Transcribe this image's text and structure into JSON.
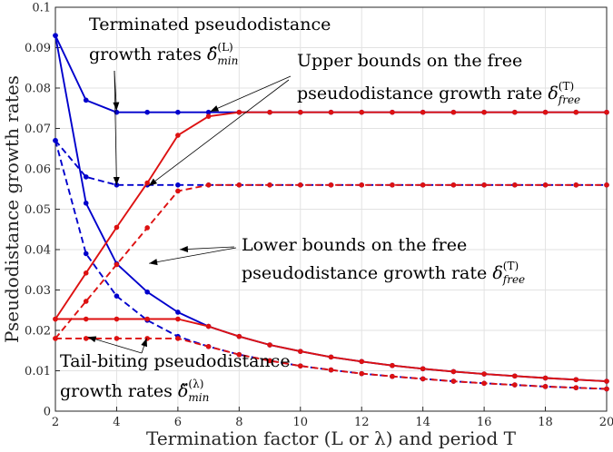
{
  "chart_data": {
    "type": "line",
    "xlabel": "Termination factor (L or λ) and period T",
    "ylabel": "Pseudodistance growth rates",
    "xlim": [
      2,
      20
    ],
    "ylim": [
      0,
      0.1
    ],
    "grid": true,
    "x_ticks": [
      "2",
      "4",
      "6",
      "8",
      "10",
      "12",
      "14",
      "16",
      "18",
      "20"
    ],
    "y_ticks": [
      "0",
      "0.01",
      "0.02",
      "0.03",
      "0.04",
      "0.05",
      "0.06",
      "0.07",
      "0.08",
      "0.09",
      "0.1"
    ],
    "x": [
      2,
      3,
      4,
      5,
      6,
      7,
      8,
      9,
      10,
      11,
      12,
      13,
      14,
      15,
      16,
      17,
      18,
      19,
      20
    ],
    "series": [
      {
        "color": "#0000cc",
        "dash": false,
        "values": [
          0.093,
          0.077,
          0.074,
          0.074,
          0.074,
          0.074,
          0.074,
          0.074,
          0.074,
          0.074,
          0.074,
          0.074,
          0.074,
          0.074,
          0.074,
          0.074,
          0.074,
          0.074,
          0.074
        ]
      },
      {
        "color": "#0000cc",
        "dash": true,
        "values": [
          0.067,
          0.058,
          0.056,
          0.056,
          0.056,
          0.056,
          0.056,
          0.056,
          0.056,
          0.056,
          0.056,
          0.056,
          0.056,
          0.056,
          0.056,
          0.056,
          0.056,
          0.056,
          0.056
        ]
      },
      {
        "color": "#0000cc",
        "dash": false,
        "values": [
          0.093,
          0.0515,
          0.0365,
          0.0295,
          0.0245,
          0.021,
          0.0185,
          0.0164,
          0.0148,
          0.0134,
          0.0123,
          0.0113,
          0.0105,
          0.0098,
          0.0092,
          0.0087,
          0.0082,
          0.0078,
          0.0074
        ]
      },
      {
        "color": "#0000cc",
        "dash": true,
        "values": [
          0.067,
          0.039,
          0.0285,
          0.0225,
          0.0185,
          0.016,
          0.014,
          0.0125,
          0.0112,
          0.0102,
          0.0093,
          0.0086,
          0.008,
          0.0074,
          0.0069,
          0.0065,
          0.0061,
          0.0058,
          0.0055
        ]
      },
      {
        "color": "#dd1111",
        "dash": false,
        "values": [
          0.0228,
          0.0342,
          0.0455,
          0.0565,
          0.0683,
          0.073,
          0.074,
          0.074,
          0.074,
          0.074,
          0.074,
          0.074,
          0.074,
          0.074,
          0.074,
          0.074,
          0.074,
          0.074,
          0.074
        ]
      },
      {
        "color": "#dd1111",
        "dash": true,
        "values": [
          0.018,
          0.0272,
          0.0363,
          0.0454,
          0.0545,
          0.056,
          0.056,
          0.056,
          0.056,
          0.056,
          0.056,
          0.056,
          0.056,
          0.056,
          0.056,
          0.056,
          0.056,
          0.056,
          0.056
        ]
      },
      {
        "color": "#dd1111",
        "dash": false,
        "values": [
          0.0228,
          0.0228,
          0.0228,
          0.0228,
          0.0228,
          0.021,
          0.0185,
          0.0164,
          0.0148,
          0.0134,
          0.0123,
          0.0113,
          0.0105,
          0.0098,
          0.0092,
          0.0087,
          0.0082,
          0.0078,
          0.0074
        ]
      },
      {
        "color": "#dd1111",
        "dash": true,
        "values": [
          0.018,
          0.018,
          0.018,
          0.018,
          0.018,
          0.016,
          0.014,
          0.0125,
          0.0112,
          0.0102,
          0.0093,
          0.0086,
          0.008,
          0.0074,
          0.0069,
          0.0065,
          0.0061,
          0.0058,
          0.0055
        ]
      }
    ],
    "annotations": [
      {
        "line1": "Terminated pseudodistance",
        "line2": "growth rates",
        "symbol": "δ̂",
        "sub": "min",
        "sup": "(L)",
        "points": [
          [
            4,
            0.074
          ],
          [
            4,
            0.0555
          ]
        ]
      },
      {
        "line1": "Upper bounds on the free",
        "line2": "pseudodistance growth rate",
        "symbol": "δ",
        "sub": "free",
        "sup": "(T)",
        "points": [
          [
            7,
            0.074
          ],
          [
            5,
            0.0555
          ]
        ]
      },
      {
        "line1": "Lower bounds on the free",
        "line2": "pseudodistance growth rate",
        "symbol": "δ",
        "sub": "free",
        "sup": "(T)",
        "points": [
          [
            5,
            0.0365
          ],
          [
            6,
            0.04
          ]
        ]
      },
      {
        "line1": "Tail-biting pseudodistance",
        "line2": "growth rates",
        "symbol": "δ̌",
        "sub": "min",
        "sup": "(λ)",
        "points": [
          [
            3,
            0.0185
          ],
          [
            5,
            0.0185
          ]
        ]
      }
    ]
  }
}
